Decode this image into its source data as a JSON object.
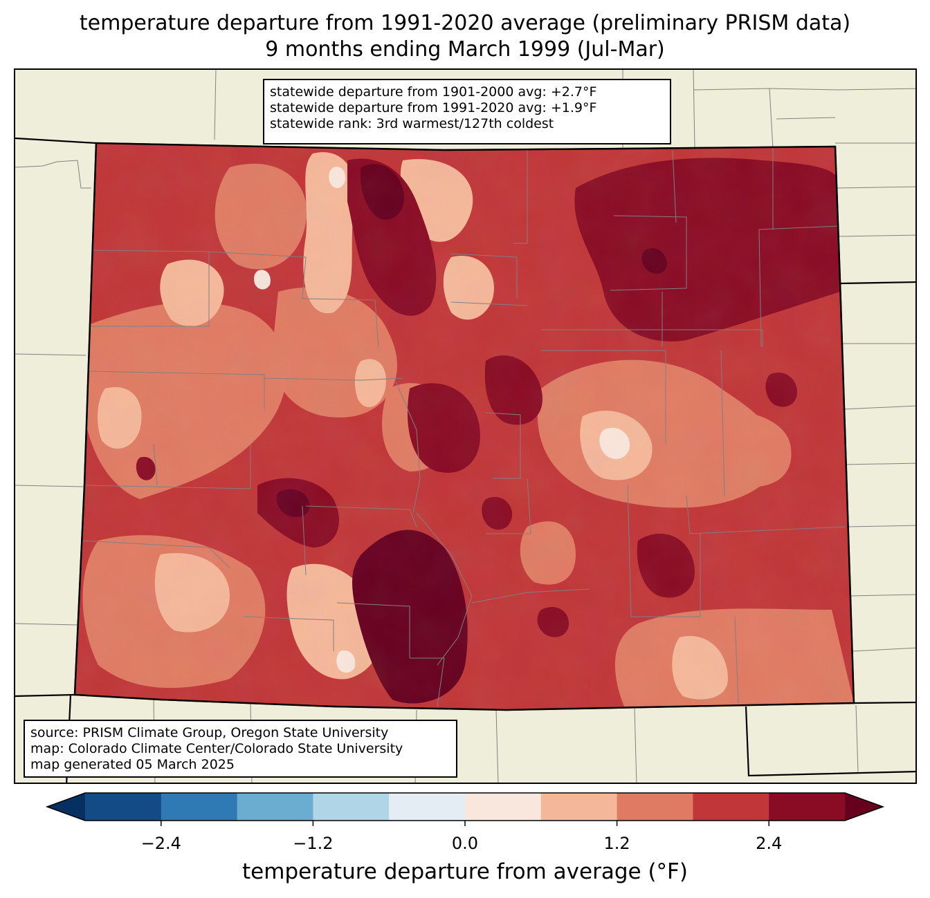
{
  "title": {
    "line1": "temperature departure from 1991-2020 average (preliminary PRISM data)",
    "line2": "9 months ending March 1999 (Jul-Mar)"
  },
  "stats": {
    "line1": "statewide departure from 1901-2000 avg: +2.7°F",
    "line2": "statewide departure from 1991-2020 avg: +1.9°F",
    "line3": "statewide rank: 3rd warmest/127th coldest"
  },
  "source": {
    "line1": "source: PRISM Climate Group, Oregon State University",
    "line2": "map: Colorado Climate Center/Colorado State University",
    "line3": "map generated 05 March 2025"
  },
  "colorbar": {
    "label": "temperature departure from average (°F)",
    "min": -3.0,
    "max": 3.0,
    "levels": [
      -3.0,
      -2.4,
      -1.8,
      -1.2,
      -0.6,
      0.0,
      0.6,
      1.2,
      1.8,
      2.4,
      3.0
    ],
    "colors": [
      "#134b87",
      "#2f79b5",
      "#6bacd1",
      "#b0d5e7",
      "#e3edf3",
      "#f9e6dc",
      "#f5b799",
      "#e07b63",
      "#c13638",
      "#8a0b24"
    ],
    "under_color": "#053061",
    "over_color": "#67001f",
    "ticks": [
      -2.4,
      -1.2,
      0.0,
      1.2,
      2.4
    ],
    "tick_labels": [
      "−2.4",
      "−1.2",
      "0.0",
      "1.2",
      "2.4"
    ]
  },
  "colors": {
    "land": "#efeedb",
    "county_line": "#808080",
    "state_line": "#000000"
  }
}
